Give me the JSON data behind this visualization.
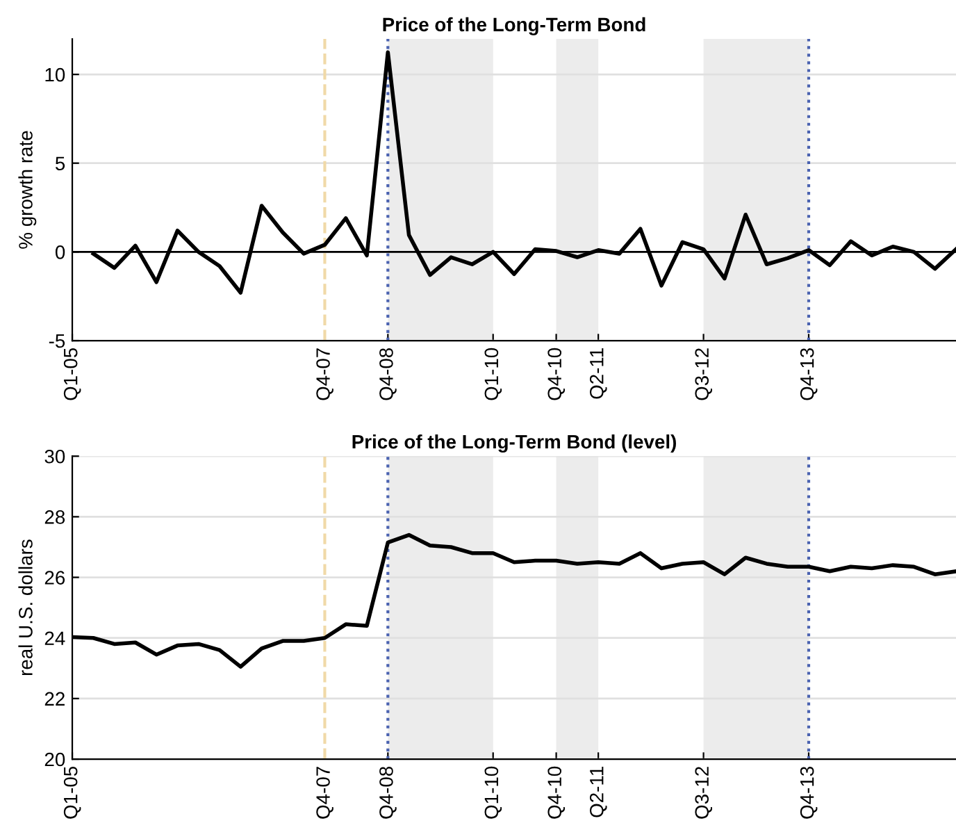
{
  "chart_data": [
    {
      "type": "line",
      "title": "Price of the Long-Term Bond",
      "ylabel": "% growth rate",
      "categories": [
        "Q1-05",
        null,
        null,
        null,
        null,
        null,
        null,
        null,
        null,
        null,
        null,
        null,
        "Q4-07",
        null,
        null,
        "Q4-08",
        null,
        null,
        null,
        null,
        "Q1-10",
        null,
        null,
        "Q4-10",
        null,
        "Q2-11",
        null,
        null,
        null,
        null,
        "Q3-12",
        null,
        null,
        null,
        null,
        "Q4-13",
        null,
        null,
        null,
        null,
        null,
        null,
        null
      ],
      "series": [
        {
          "color": "#000000",
          "values": [
            null,
            -0.1,
            -0.9,
            0.35,
            -1.7,
            1.2,
            0,
            -0.8,
            -2.3,
            2.6,
            1.1,
            -0.1,
            0.4,
            1.9,
            -0.2,
            11.25,
            0.95,
            -1.3,
            -0.3,
            -0.7,
            0,
            -1.25,
            0.15,
            0.05,
            -0.3,
            0.1,
            -0.1,
            1.3,
            -1.9,
            0.55,
            0.15,
            -1.5,
            2.1,
            -0.7,
            -0.35,
            0.1,
            -0.75,
            0.6,
            -0.2,
            0.3,
            0,
            -0.95,
            0.15
          ]
        }
      ],
      "ylim": [
        -5,
        12
      ],
      "yticks": [
        -5,
        0,
        5,
        10
      ],
      "grid": "y",
      "line_style": "solid",
      "bands": [
        {
          "axis": "x",
          "from": "Q4-08",
          "to": "Q1-10",
          "color": "#ececec"
        },
        {
          "axis": "x",
          "from": "Q4-10",
          "to": "Q2-11",
          "color": "#ececec"
        },
        {
          "axis": "x",
          "from": "Q3-12",
          "to": "Q4-13",
          "color": "#ececec"
        }
      ],
      "ref_lines": [
        {
          "axis": "y",
          "value": 0,
          "color": "#000000",
          "line_style": "solid"
        },
        {
          "axis": "x",
          "value": "Q4-07",
          "color": "#f0d9a8",
          "line_style": "dashed"
        },
        {
          "axis": "x",
          "value": "Q4-08",
          "color": "#4a62b0",
          "line_style": "dotted"
        },
        {
          "axis": "x",
          "value": "Q4-13",
          "color": "#4a62b0",
          "line_style": "dotted"
        }
      ]
    },
    {
      "type": "line",
      "title": "Price of the Long-Term Bond (level)",
      "ylabel": "real U.S. dollars",
      "categories": [
        "Q1-05",
        null,
        null,
        null,
        null,
        null,
        null,
        null,
        null,
        null,
        null,
        null,
        "Q4-07",
        null,
        null,
        "Q4-08",
        null,
        null,
        null,
        null,
        "Q1-10",
        null,
        null,
        "Q4-10",
        null,
        "Q2-11",
        null,
        null,
        null,
        null,
        "Q3-12",
        null,
        null,
        null,
        null,
        "Q4-13",
        null,
        null,
        null,
        null,
        null,
        null,
        null
      ],
      "series": [
        {
          "color": "#000000",
          "values": [
            24.03,
            24.0,
            23.8,
            23.85,
            23.45,
            23.75,
            23.8,
            23.6,
            23.05,
            23.65,
            23.9,
            23.9,
            24.0,
            24.45,
            24.4,
            27.15,
            27.4,
            27.05,
            27.0,
            26.8,
            26.8,
            26.5,
            26.55,
            26.55,
            26.45,
            26.5,
            26.45,
            26.8,
            26.3,
            26.45,
            26.5,
            26.1,
            26.65,
            26.45,
            26.35,
            26.35,
            26.2,
            26.35,
            26.3,
            26.4,
            26.35,
            26.1,
            26.2
          ]
        }
      ],
      "ylim": [
        20,
        30
      ],
      "yticks": [
        20,
        22,
        24,
        26,
        28,
        30
      ],
      "grid": "y",
      "line_style": "solid",
      "bands": [
        {
          "axis": "x",
          "from": "Q4-08",
          "to": "Q1-10",
          "color": "#ececec"
        },
        {
          "axis": "x",
          "from": "Q4-10",
          "to": "Q2-11",
          "color": "#ececec"
        },
        {
          "axis": "x",
          "from": "Q3-12",
          "to": "Q4-13",
          "color": "#ececec"
        }
      ],
      "ref_lines": [
        {
          "axis": "x",
          "value": "Q4-07",
          "color": "#f0d9a8",
          "line_style": "dashed"
        },
        {
          "axis": "x",
          "value": "Q4-08",
          "color": "#4a62b0",
          "line_style": "dotted"
        },
        {
          "axis": "x",
          "value": "Q4-13",
          "color": "#4a62b0",
          "line_style": "dotted"
        }
      ]
    }
  ]
}
